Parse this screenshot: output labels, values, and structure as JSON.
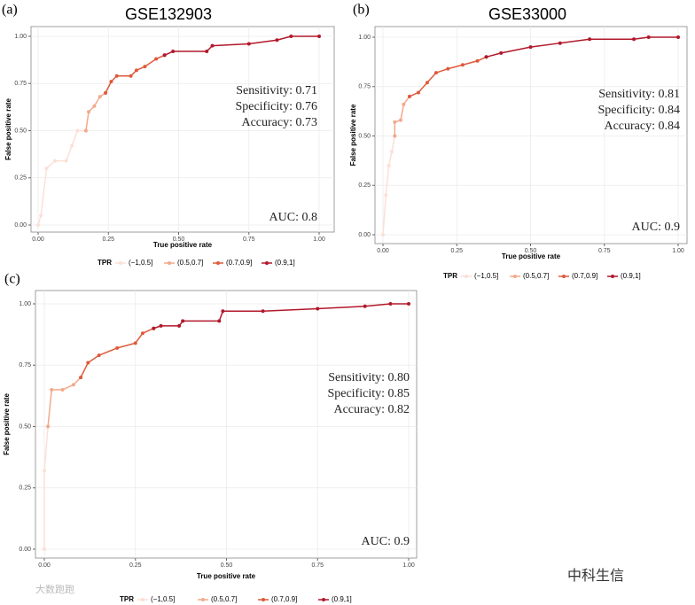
{
  "chart_data": [
    {
      "type": "line",
      "panel_label": "(a)",
      "title": "GSE132903",
      "xlabel": "True positive rate",
      "ylabel": "False positive rate",
      "annotations": [
        "Sensitivity: 0.71",
        "Specificity: 0.76",
        "Accuracy: 0.73"
      ],
      "auc_label": "AUC: 0.8",
      "legend_title": "TPR",
      "grid": true,
      "xlim": [
        0,
        1
      ],
      "ylim": [
        0,
        1
      ],
      "xticks": [
        {
          "value": 0,
          "label": "0.00"
        },
        {
          "value": 0.25,
          "label": "0.25"
        },
        {
          "value": 0.5,
          "label": "0.50"
        },
        {
          "value": 0.75,
          "label": "0.75"
        },
        {
          "value": 1,
          "label": "1.00"
        }
      ],
      "yticks": [
        {
          "value": 0,
          "label": "0.00"
        },
        {
          "value": 0.25,
          "label": "0.25"
        },
        {
          "value": 0.5,
          "label": "0.50"
        },
        {
          "value": 0.75,
          "label": "0.75"
        },
        {
          "value": 1,
          "label": "1.00"
        }
      ],
      "series": [
        {
          "name": "(−1,0.5]",
          "color": "#fbe0d6",
          "x": [
            0,
            0.01,
            0.03,
            0.06,
            0.1,
            0.12,
            0.14,
            0.17
          ],
          "values": [
            0,
            0.05,
            0.3,
            0.34,
            0.34,
            0.42,
            0.5,
            0.5
          ]
        },
        {
          "name": "(0.5,0.7]",
          "color": "#f2a98c",
          "x": [
            0.17,
            0.18,
            0.2,
            0.22,
            0.24
          ],
          "values": [
            0.5,
            0.6,
            0.63,
            0.68,
            0.7
          ]
        },
        {
          "name": "(0.7,0.9]",
          "color": "#de5a3a",
          "x": [
            0.24,
            0.26,
            0.28,
            0.33,
            0.35,
            0.38,
            0.42,
            0.45
          ],
          "values": [
            0.7,
            0.76,
            0.79,
            0.79,
            0.82,
            0.84,
            0.88,
            0.9
          ]
        },
        {
          "name": "(0.9,1]",
          "color": "#b2182b",
          "x": [
            0.45,
            0.48,
            0.6,
            0.62,
            0.75,
            0.85,
            0.9,
            1
          ],
          "values": [
            0.9,
            0.92,
            0.92,
            0.95,
            0.96,
            0.98,
            1,
            1
          ]
        }
      ]
    },
    {
      "type": "line",
      "panel_label": "(b)",
      "title": "GSE33000",
      "xlabel": "True positive rate",
      "ylabel": "False positive rate",
      "annotations": [
        "Sensitivity: 0.81",
        "Specificity: 0.84",
        "Accuracy: 0.84"
      ],
      "auc_label": "AUC: 0.9",
      "legend_title": "TPR",
      "grid": true,
      "xlim": [
        0,
        1
      ],
      "ylim": [
        0,
        1
      ],
      "xticks": [
        {
          "value": 0,
          "label": "0.00"
        },
        {
          "value": 0.25,
          "label": "0.25"
        },
        {
          "value": 0.5,
          "label": "0.50"
        },
        {
          "value": 0.75,
          "label": "0.75"
        },
        {
          "value": 1,
          "label": "1.00"
        }
      ],
      "yticks": [
        {
          "value": 0,
          "label": "0.00"
        },
        {
          "value": 0.25,
          "label": "0.25"
        },
        {
          "value": 0.5,
          "label": "0.50"
        },
        {
          "value": 0.75,
          "label": "0.75"
        },
        {
          "value": 1,
          "label": "1.00"
        }
      ],
      "series": [
        {
          "name": "(−1,0.5]",
          "color": "#fbe0d6",
          "x": [
            0,
            0.01,
            0.02,
            0.03,
            0.04
          ],
          "values": [
            0,
            0.2,
            0.35,
            0.42,
            0.5
          ]
        },
        {
          "name": "(0.5,0.7]",
          "color": "#f2a98c",
          "x": [
            0.04,
            0.04,
            0.06,
            0.07,
            0.09
          ],
          "values": [
            0.5,
            0.57,
            0.58,
            0.66,
            0.7
          ]
        },
        {
          "name": "(0.7,0.9]",
          "color": "#de5a3a",
          "x": [
            0.09,
            0.12,
            0.15,
            0.18,
            0.22,
            0.27,
            0.32,
            0.35
          ],
          "values": [
            0.7,
            0.72,
            0.77,
            0.82,
            0.84,
            0.86,
            0.88,
            0.9
          ]
        },
        {
          "name": "(0.9,1]",
          "color": "#b2182b",
          "x": [
            0.35,
            0.4,
            0.5,
            0.6,
            0.7,
            0.85,
            0.9,
            1
          ],
          "values": [
            0.9,
            0.92,
            0.95,
            0.97,
            0.99,
            0.99,
            1,
            1
          ]
        }
      ]
    },
    {
      "type": "line",
      "panel_label": "(c)",
      "xlabel": "True positive rate",
      "ylabel": "False positive rate",
      "annotations": [
        "Sensitivity: 0.80",
        "Specificity: 0.85",
        "Accuracy: 0.82"
      ],
      "auc_label": "AUC: 0.9",
      "legend_title": "TPR",
      "grid": true,
      "xlim": [
        0,
        1
      ],
      "ylim": [
        0,
        1
      ],
      "xticks": [
        {
          "value": 0,
          "label": "0.00"
        },
        {
          "value": 0.25,
          "label": "0.25"
        },
        {
          "value": 0.5,
          "label": "0.50"
        },
        {
          "value": 0.75,
          "label": "0.75"
        },
        {
          "value": 1,
          "label": "1.00"
        }
      ],
      "yticks": [
        {
          "value": 0,
          "label": "0.00"
        },
        {
          "value": 0.25,
          "label": "0.25"
        },
        {
          "value": 0.5,
          "label": "0.50"
        },
        {
          "value": 0.75,
          "label": "0.75"
        },
        {
          "value": 1,
          "label": "1.00"
        }
      ],
      "series": [
        {
          "name": "(−1,0.5]",
          "color": "#fbe0d6",
          "x": [
            0,
            0,
            0.01
          ],
          "values": [
            0,
            0.32,
            0.5
          ]
        },
        {
          "name": "(0.5,0.7]",
          "color": "#f2a98c",
          "x": [
            0.01,
            0.02,
            0.05,
            0.08,
            0.1
          ],
          "values": [
            0.5,
            0.65,
            0.65,
            0.67,
            0.7
          ]
        },
        {
          "name": "(0.7,0.9]",
          "color": "#de5a3a",
          "x": [
            0.1,
            0.12,
            0.15,
            0.2,
            0.25,
            0.27,
            0.3
          ],
          "values": [
            0.7,
            0.76,
            0.79,
            0.82,
            0.84,
            0.88,
            0.9
          ]
        },
        {
          "name": "(0.9,1]",
          "color": "#b2182b",
          "x": [
            0.3,
            0.32,
            0.37,
            0.38,
            0.48,
            0.49,
            0.6,
            0.75,
            0.88,
            0.95,
            1
          ],
          "values": [
            0.9,
            0.91,
            0.91,
            0.93,
            0.93,
            0.97,
            0.97,
            0.98,
            0.99,
            1,
            1
          ]
        }
      ]
    }
  ],
  "watermarks": [
    "中科生信",
    "大数跑跑"
  ]
}
